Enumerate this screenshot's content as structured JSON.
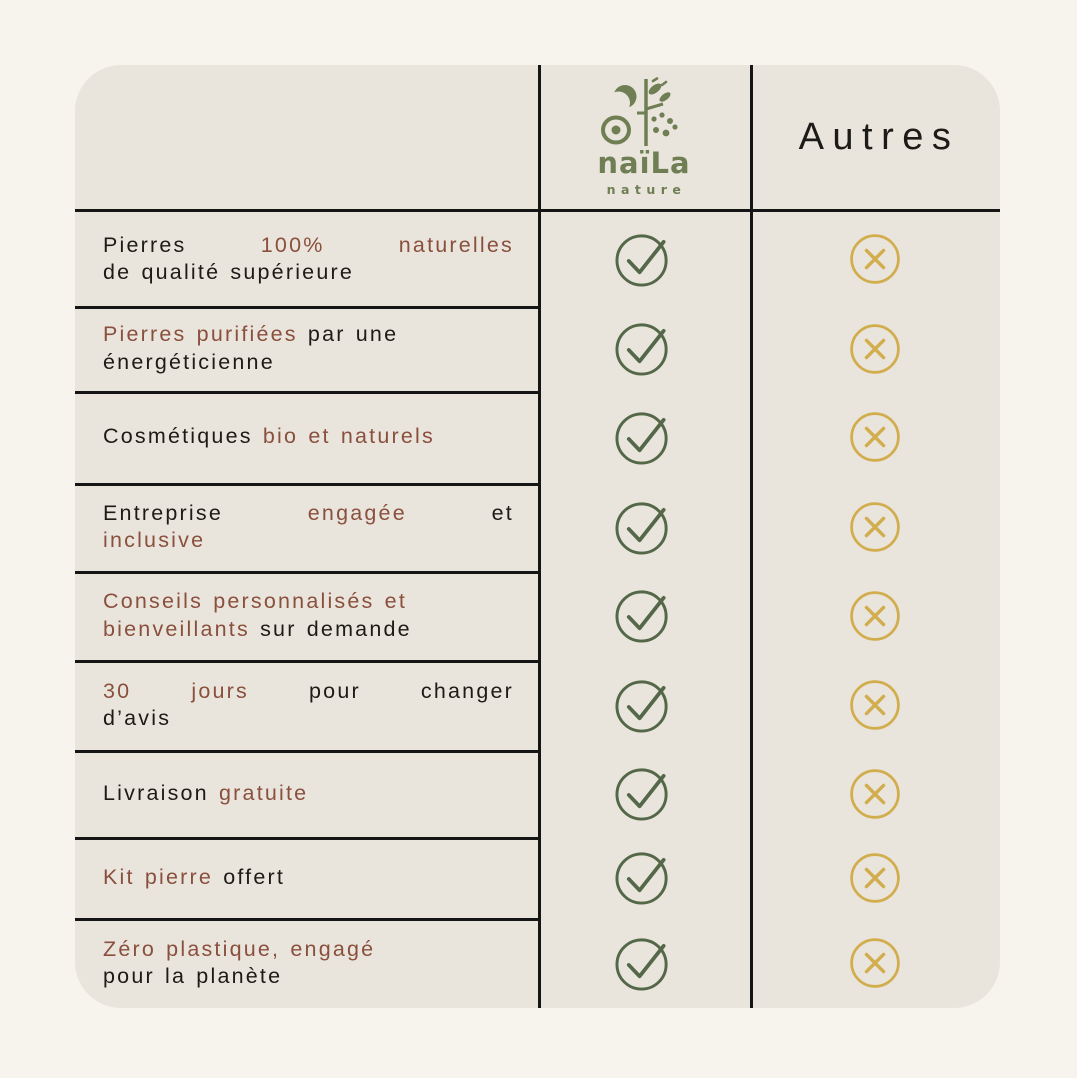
{
  "colors": {
    "background": "#f7f4ed",
    "card_background": "#e9e5dc",
    "line": "#151515",
    "text": "#1d1b17",
    "accent_brown": "#8a4f3d",
    "brand_green": "#6f7e53",
    "check_green": "#546849",
    "cross_gold": "#d2ad4e"
  },
  "header": {
    "brand": {
      "name": "naïLa",
      "subtitle": "nature",
      "logo_icon": "moon-sun-plant-icon"
    },
    "competitors_label": "Autres"
  },
  "icons": {
    "check": "check-circle-icon",
    "cross": "cross-circle-icon"
  },
  "rows": [
    {
      "feature_lines": [
        {
          "justify": true,
          "segments": [
            {
              "text": "Pierres ",
              "style": "default"
            },
            {
              "text": "100% naturelles",
              "style": "accent"
            }
          ]
        },
        {
          "justify": false,
          "segments": [
            {
              "text": "de qualité supérieure",
              "style": "default"
            }
          ]
        }
      ],
      "naila": "check",
      "autres": "cross"
    },
    {
      "feature_lines": [
        {
          "justify": false,
          "segments": [
            {
              "text": "Pierres purifiées",
              "style": "accent"
            },
            {
              "text": " par une",
              "style": "default"
            }
          ]
        },
        {
          "justify": false,
          "segments": [
            {
              "text": "énergéticienne",
              "style": "default"
            }
          ]
        }
      ],
      "naila": "check",
      "autres": "cross"
    },
    {
      "feature_lines": [
        {
          "justify": false,
          "segments": [
            {
              "text": "Cosmétiques ",
              "style": "default"
            },
            {
              "text": "bio et naturels",
              "style": "accent"
            }
          ]
        }
      ],
      "naila": "check",
      "autres": "cross"
    },
    {
      "feature_lines": [
        {
          "justify": true,
          "segments": [
            {
              "text": "Entreprise ",
              "style": "default"
            },
            {
              "text": "engagée",
              "style": "accent"
            },
            {
              "text": " et",
              "style": "default"
            }
          ]
        },
        {
          "justify": false,
          "segments": [
            {
              "text": "inclusive",
              "style": "accent"
            }
          ]
        }
      ],
      "naila": "check",
      "autres": "cross"
    },
    {
      "feature_lines": [
        {
          "justify": false,
          "segments": [
            {
              "text": "Conseils personnalisés et",
              "style": "accent"
            }
          ]
        },
        {
          "justify": false,
          "segments": [
            {
              "text": "bienveillants",
              "style": "accent"
            },
            {
              "text": " sur demande",
              "style": "default"
            }
          ]
        }
      ],
      "naila": "check",
      "autres": "cross"
    },
    {
      "feature_lines": [
        {
          "justify": true,
          "segments": [
            {
              "text": "30 jours",
              "style": "accent"
            },
            {
              "text": " pour changer",
              "style": "default"
            }
          ]
        },
        {
          "justify": false,
          "segments": [
            {
              "text": "d’avis",
              "style": "default"
            }
          ]
        }
      ],
      "naila": "check",
      "autres": "cross"
    },
    {
      "feature_lines": [
        {
          "justify": false,
          "segments": [
            {
              "text": "Livraison ",
              "style": "default"
            },
            {
              "text": "gratuite",
              "style": "accent"
            }
          ]
        }
      ],
      "naila": "check",
      "autres": "cross"
    },
    {
      "feature_lines": [
        {
          "justify": false,
          "segments": [
            {
              "text": "Kit pierre",
              "style": "accent"
            },
            {
              "text": " offert",
              "style": "default"
            }
          ]
        }
      ],
      "naila": "check",
      "autres": "cross"
    },
    {
      "feature_lines": [
        {
          "justify": false,
          "segments": [
            {
              "text": "Zéro plastique, engagé",
              "style": "accent"
            }
          ]
        },
        {
          "justify": false,
          "segments": [
            {
              "text": "pour la planète",
              "style": "default"
            }
          ]
        }
      ],
      "naila": "check",
      "autres": "cross"
    }
  ],
  "chart_data": {
    "type": "table",
    "columns": [
      "",
      "naïLa nature",
      "Autres"
    ],
    "rows": [
      [
        "Pierres 100% naturelles de qualité supérieure",
        true,
        false
      ],
      [
        "Pierres purifiées par une énergéticienne",
        true,
        false
      ],
      [
        "Cosmétiques bio et naturels",
        true,
        false
      ],
      [
        "Entreprise engagée et inclusive",
        true,
        false
      ],
      [
        "Conseils personnalisés et bienveillants sur demande",
        true,
        false
      ],
      [
        "30 jours pour changer d’avis",
        true,
        false
      ],
      [
        "Livraison gratuite",
        true,
        false
      ],
      [
        "Kit pierre offert",
        true,
        false
      ],
      [
        "Zéro plastique, engagé pour la planète",
        true,
        false
      ]
    ],
    "legend_position": "none",
    "grid": true
  }
}
